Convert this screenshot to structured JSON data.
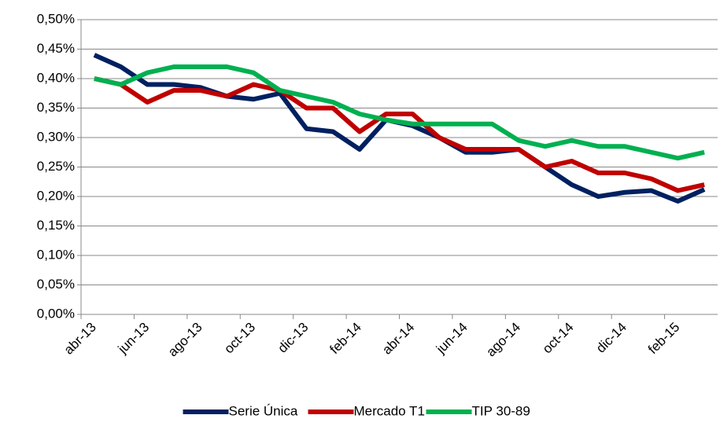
{
  "chart_data": {
    "type": "line",
    "categories": [
      "abr-13",
      null,
      "jun-13",
      null,
      "ago-13",
      null,
      "oct-13",
      null,
      "dic-13",
      null,
      "feb-14",
      null,
      "abr-14",
      null,
      "jun-14",
      null,
      "ago-14",
      null,
      "oct-14",
      null,
      "dic-14",
      null,
      "feb-15",
      null
    ],
    "series": [
      {
        "name": "Serie Única",
        "color": "#002060",
        "values": [
          0.44,
          0.42,
          0.39,
          0.39,
          0.385,
          0.37,
          0.365,
          0.375,
          0.315,
          0.31,
          0.28,
          0.33,
          0.32,
          0.3,
          0.275,
          0.275,
          0.28,
          0.25,
          0.22,
          0.2,
          0.207,
          0.21,
          0.192,
          0.212
        ]
      },
      {
        "name": "Mercado T1",
        "color": "#c00000",
        "values": [
          0.4,
          0.39,
          0.36,
          0.38,
          0.38,
          0.37,
          0.39,
          0.38,
          0.35,
          0.35,
          0.31,
          0.34,
          0.34,
          0.3,
          0.28,
          0.28,
          0.28,
          0.25,
          0.26,
          0.24,
          0.24,
          0.23,
          0.21,
          0.22
        ]
      },
      {
        "name": "TIP 30-89",
        "color": "#00b050",
        "values": [
          0.4,
          0.39,
          0.41,
          0.42,
          0.42,
          0.42,
          0.41,
          0.38,
          0.37,
          0.36,
          0.34,
          0.33,
          0.323,
          0.323,
          0.323,
          0.323,
          0.295,
          0.285,
          0.295,
          0.285,
          0.285,
          0.275,
          0.265,
          0.275
        ]
      }
    ],
    "ylim": [
      0,
      0.5
    ],
    "yticks": [
      {
        "value": 0,
        "label": "0,00%"
      },
      {
        "value": 0.05,
        "label": "0,05%"
      },
      {
        "value": 0.1,
        "label": "0,10%"
      },
      {
        "value": 0.15,
        "label": "0,15%"
      },
      {
        "value": 0.2,
        "label": "0,20%"
      },
      {
        "value": 0.25,
        "label": "0,25%"
      },
      {
        "value": 0.3,
        "label": "0,30%"
      },
      {
        "value": 0.35,
        "label": "0,35%"
      },
      {
        "value": 0.4,
        "label": "0,40%"
      },
      {
        "value": 0.45,
        "label": "0,45%"
      },
      {
        "value": 0.5,
        "label": "0,50%"
      }
    ],
    "grid": true,
    "legend": "bottom"
  }
}
